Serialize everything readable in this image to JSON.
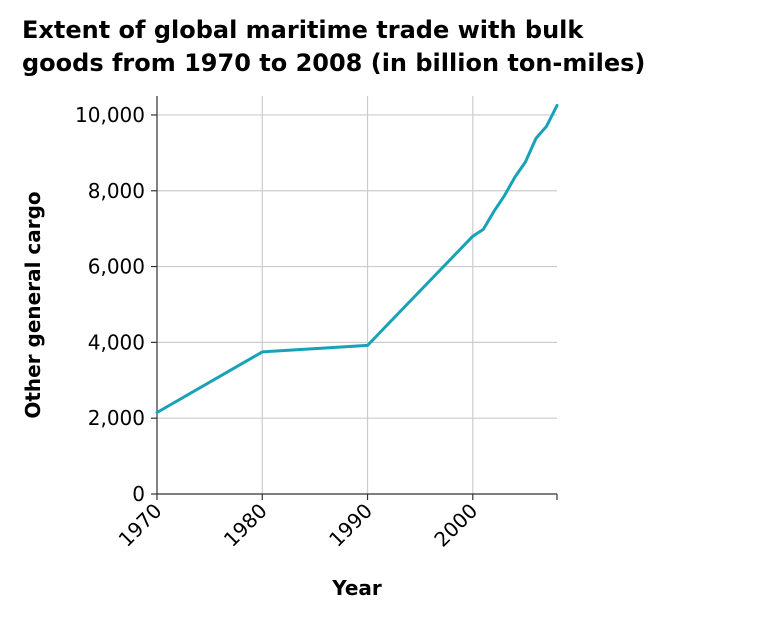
{
  "chart_data": {
    "type": "line",
    "title": "Extent of global maritime trade with bulk\ngoods from 1970 to 2008 (in billion ton-miles)",
    "xlabel": "Year",
    "ylabel": "Other general cargo",
    "xlim": [
      1970,
      2008
    ],
    "ylim": [
      0,
      10500
    ],
    "x_ticks": [
      1970,
      1980,
      1990,
      2000
    ],
    "x_tick_labels": [
      "1970",
      "1980",
      "1990",
      "2000"
    ],
    "y_ticks": [
      0,
      2000,
      4000,
      6000,
      8000,
      10000
    ],
    "y_tick_labels": [
      "0",
      "2,000",
      "4,000",
      "6,000",
      "8,000",
      "10,000"
    ],
    "grid": true,
    "line_color": "#17a2b8",
    "series": [
      {
        "x": [
          1970,
          1980,
          1990,
          2000,
          2001,
          2002,
          2003,
          2004,
          2005,
          2006,
          2007,
          2008
        ],
        "values": [
          2150,
          3750,
          3920,
          6800,
          6980,
          7450,
          7870,
          8360,
          8760,
          9380,
          9700,
          10250
        ]
      }
    ]
  }
}
